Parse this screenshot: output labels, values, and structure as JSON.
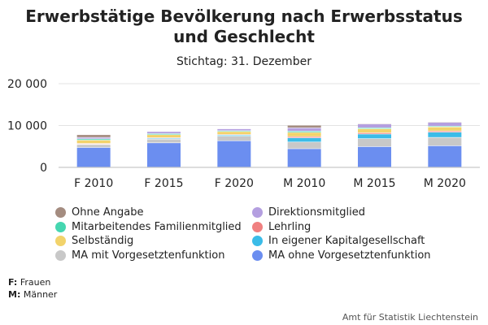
{
  "chart_data": {
    "type": "bar",
    "stacked": true,
    "title_line1": "Erwerbstätige Bevölkerung nach Erwerbsstatus",
    "title_line2": "und Geschlecht",
    "subtitle": "Stichtag: 31. Dezember",
    "xlabel": "",
    "ylabel": "",
    "ylim": [
      0,
      20000
    ],
    "yticks": [
      0,
      10000,
      20000
    ],
    "ytick_labels": [
      "0",
      "10 000",
      "20 000"
    ],
    "grid": true,
    "legend_position": "bottom",
    "categories": [
      "F 2010",
      "F 2015",
      "F 2020",
      "M 2010",
      "M 2015",
      "M 2020"
    ],
    "series": [
      {
        "name": "MA ohne Vorgesetztenfunktion",
        "color": "#6b8ef0",
        "values": [
          4700,
          5800,
          6300,
          4400,
          4900,
          5100
        ]
      },
      {
        "name": "MA mit Vorgesetztenfunktion",
        "color": "#c8c8c8",
        "values": [
          700,
          900,
          1100,
          1600,
          1900,
          2000
        ]
      },
      {
        "name": "In eigener Kapitalgesellschaft",
        "color": "#3bbce8",
        "values": [
          100,
          200,
          250,
          1000,
          1100,
          1250
        ]
      },
      {
        "name": "Lehrling",
        "color": "#f08080",
        "values": [
          150,
          150,
          150,
          300,
          300,
          300
        ]
      },
      {
        "name": "Selbständig",
        "color": "#f2d36b",
        "values": [
          800,
          700,
          700,
          1000,
          950,
          950
        ]
      },
      {
        "name": "Mitarbeitendes Familienmitglied",
        "color": "#45d6b0",
        "values": [
          300,
          250,
          200,
          300,
          250,
          200
        ]
      },
      {
        "name": "Direktionsmitglied",
        "color": "#b49fe0",
        "values": [
          350,
          500,
          450,
          800,
          900,
          900
        ]
      },
      {
        "name": "Ohne Angabe",
        "color": "#a48c80",
        "values": [
          650,
          100,
          100,
          600,
          150,
          150
        ]
      }
    ]
  },
  "legend_order": [
    "Ohne Angabe",
    "Direktionsmitglied",
    "Mitarbeitendes Familienmitglied",
    "Lehrling",
    "Selbständig",
    "In eigener Kapitalgesellschaft",
    "MA mit Vorgesetztenfunktion",
    "MA ohne Vorgesetztenfunktion"
  ],
  "notes": {
    "f_key": "F:",
    "f_value": "Frauen",
    "m_key": "M:",
    "m_value": "Männer"
  },
  "credit": "Amt für Statistik Liechtenstein"
}
